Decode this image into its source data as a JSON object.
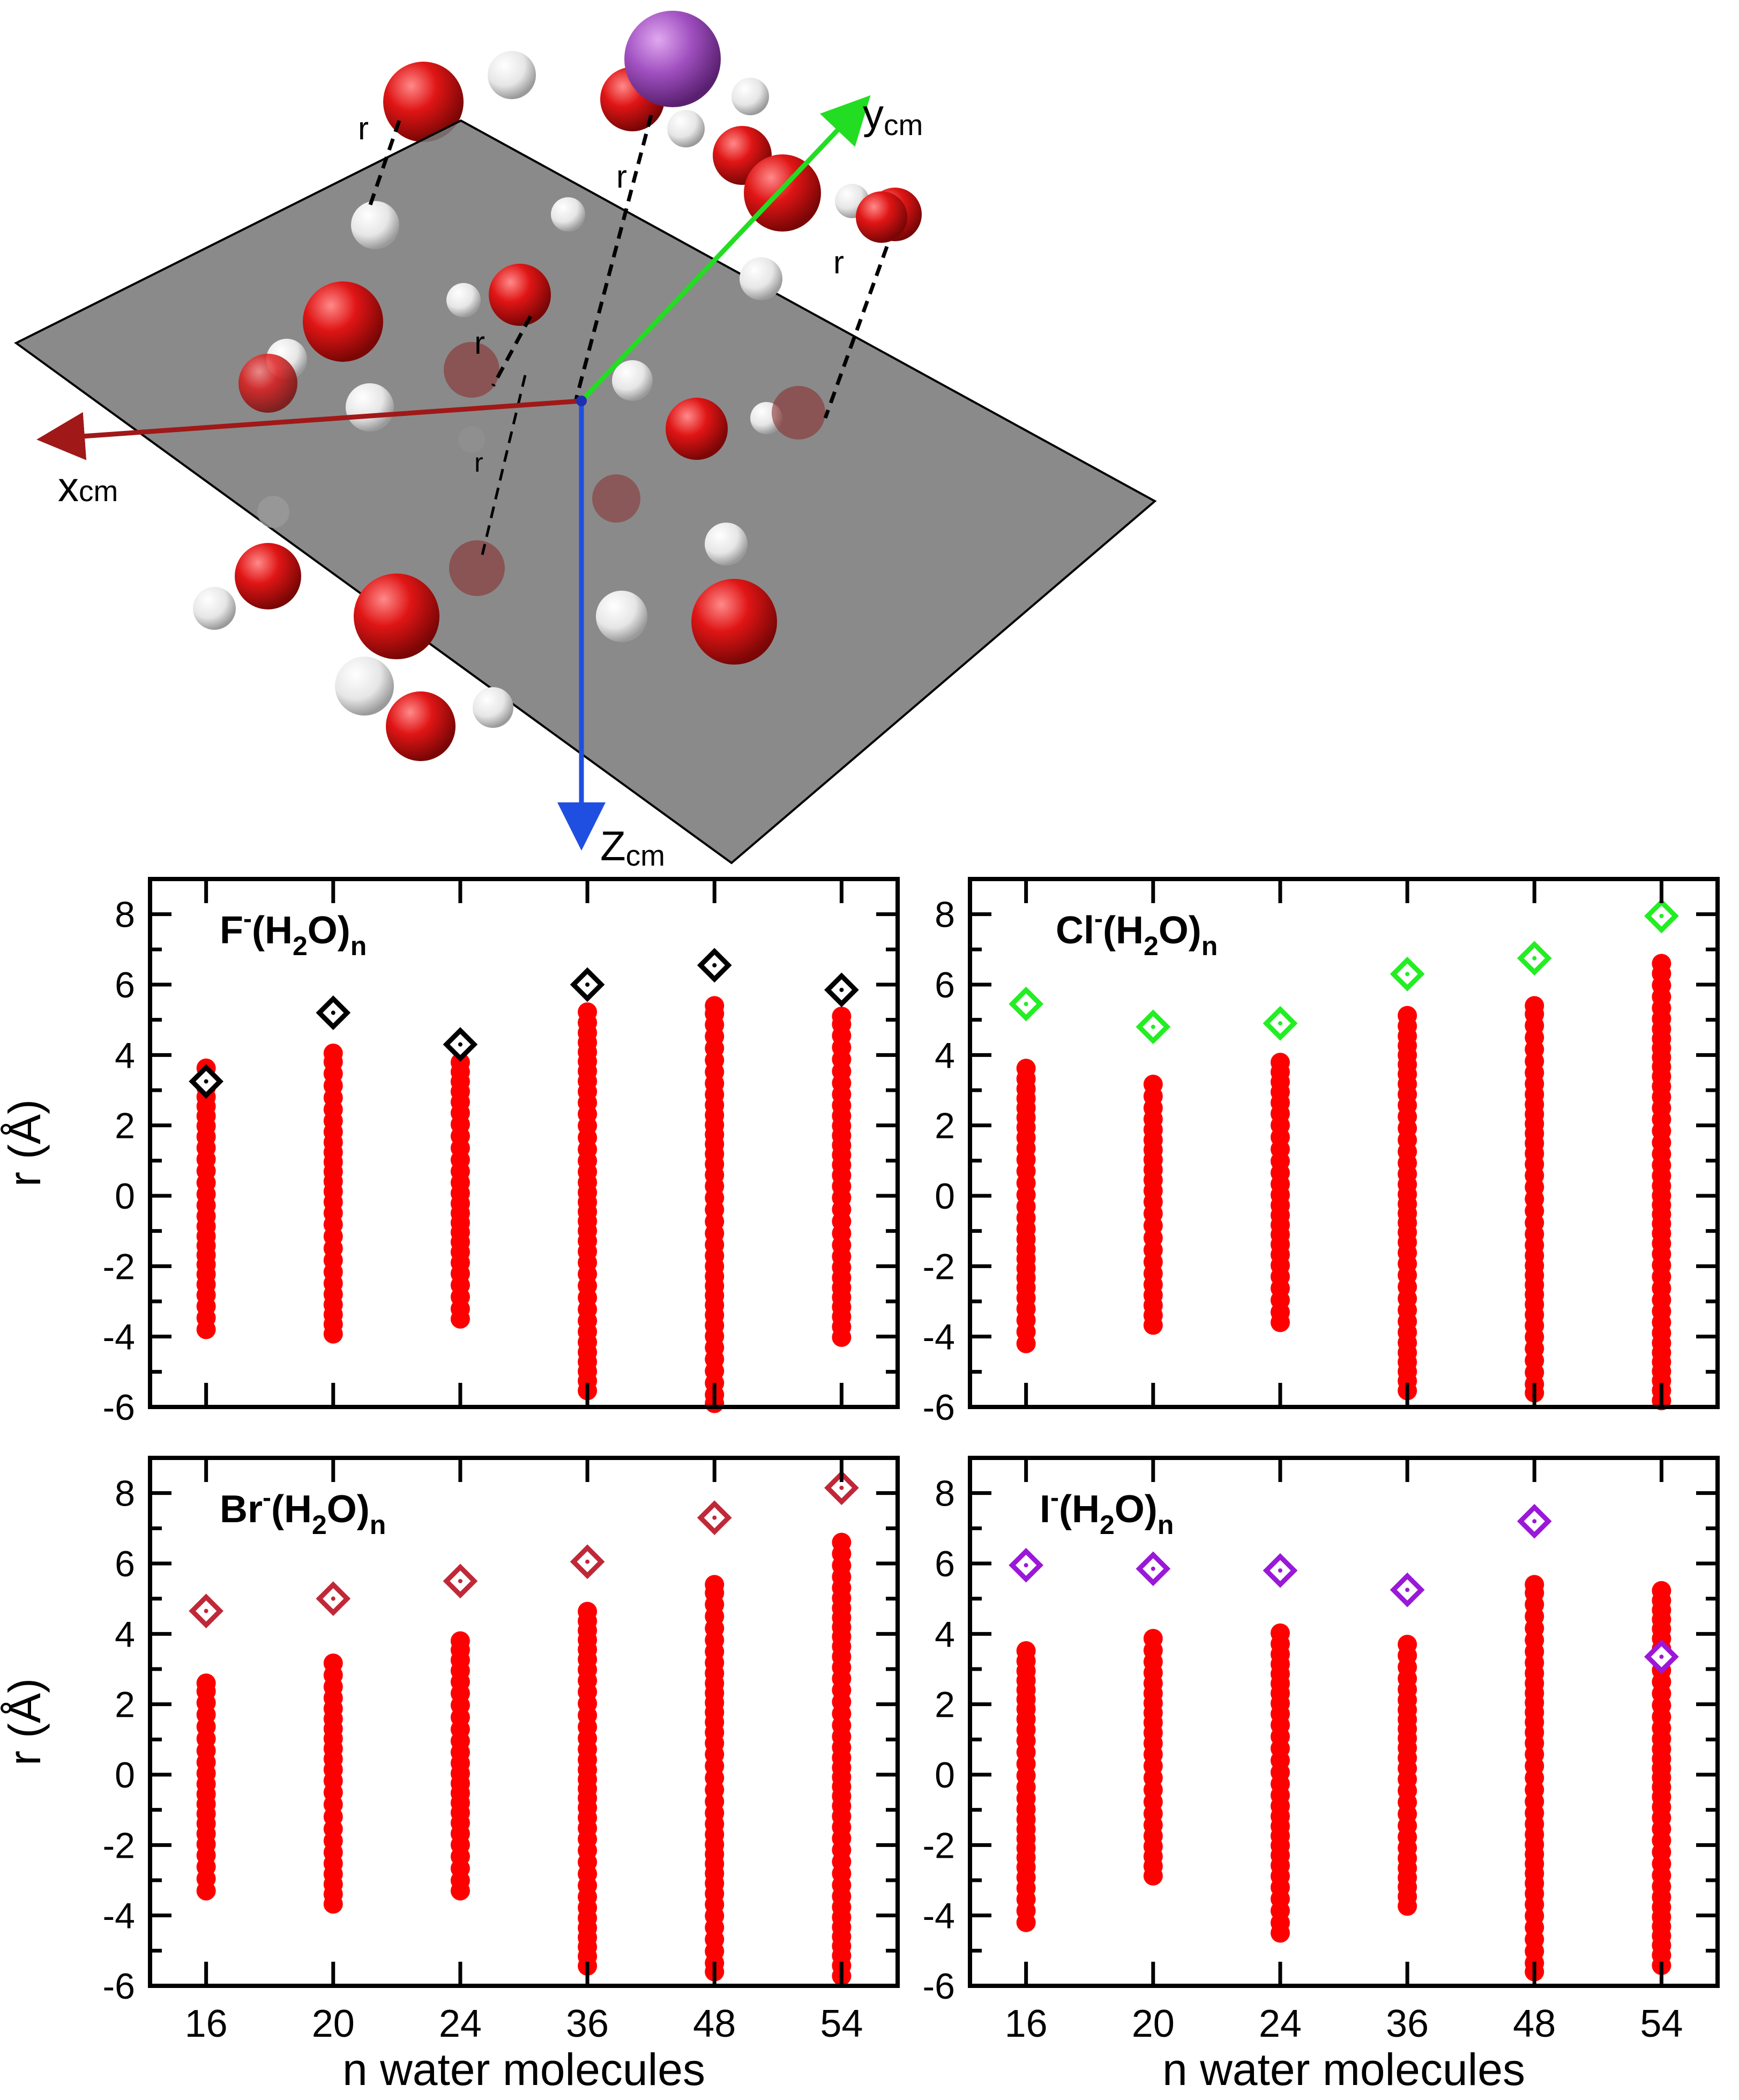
{
  "figure": {
    "colors": {
      "water_O": "#e51616",
      "water_H": "#f2f2f2",
      "ion": "#a050c0",
      "plane": "#7a7a7a"
    }
  },
  "diagram": {
    "x_axis_label": "x",
    "x_axis_sub": "cm",
    "y_axis_label": "y",
    "y_axis_sub": "cm",
    "z_axis_label": "Z",
    "z_axis_sub": "cm",
    "distance_label": "r",
    "colors": {
      "x_axis": "#a01818",
      "y_axis": "#22dd22",
      "z_axis": "#1f4fe0"
    }
  },
  "chart_data": [
    {
      "type": "scatter",
      "panel": "top-left",
      "label_parts": {
        "base": "F",
        "sup": "-",
        "paren_open": "(H",
        "sub": "2",
        "paren_close": "O)",
        "tail_sub": "n"
      },
      "categories": [
        "16",
        "20",
        "24",
        "36",
        "48",
        "54"
      ],
      "xlabel": "",
      "ylabel": "r (Å)",
      "ylim": [
        -6,
        9
      ],
      "yticks": [
        -6,
        -4,
        -2,
        0,
        2,
        4,
        6,
        8
      ],
      "ion_color": "#000000",
      "ion_r": [
        3.25,
        5.2,
        4.3,
        6.0,
        6.55,
        5.85
      ],
      "water_range": [
        [
          -3.8,
          3.7
        ],
        [
          -3.95,
          4.05
        ],
        [
          -3.5,
          3.8
        ],
        [
          -5.6,
          5.3
        ],
        [
          -5.9,
          5.4
        ],
        [
          -4.1,
          5.1
        ]
      ]
    },
    {
      "type": "scatter",
      "panel": "top-right",
      "label_parts": {
        "base": "Cl",
        "sup": "-",
        "paren_open": "(H",
        "sub": "2",
        "paren_close": "O)",
        "tail_sub": "n"
      },
      "categories": [
        "16",
        "20",
        "24",
        "36",
        "48",
        "54"
      ],
      "xlabel": "",
      "ylabel": "",
      "ylim": [
        -6,
        9
      ],
      "yticks": [
        -6,
        -4,
        -2,
        0,
        2,
        4,
        6,
        8
      ],
      "ion_color": "#22ee22",
      "ion_r": [
        5.45,
        4.8,
        4.9,
        6.3,
        6.75,
        7.95
      ],
      "water_range": [
        [
          -4.2,
          3.7
        ],
        [
          -3.7,
          3.2
        ],
        [
          -3.6,
          3.8
        ],
        [
          -5.6,
          5.2
        ],
        [
          -5.6,
          5.4
        ],
        [
          -5.9,
          6.6
        ]
      ]
    },
    {
      "type": "scatter",
      "panel": "bottom-left",
      "label_parts": {
        "base": "Br",
        "sup": "-",
        "paren_open": "(H",
        "sub": "2",
        "paren_close": "O)",
        "tail_sub": "n"
      },
      "categories": [
        "16",
        "20",
        "24",
        "36",
        "48",
        "54"
      ],
      "xlabel": "n water molecules",
      "ylabel": "r (Å)",
      "ylim": [
        -6,
        9
      ],
      "yticks": [
        -6,
        -4,
        -2,
        0,
        2,
        4,
        6,
        8
      ],
      "ion_color": "#c02838",
      "ion_r": [
        4.65,
        5.0,
        5.5,
        6.05,
        7.3,
        8.15
      ],
      "water_range": [
        [
          -3.3,
          2.6
        ],
        [
          -3.7,
          3.2
        ],
        [
          -3.3,
          3.8
        ],
        [
          -5.5,
          4.7
        ],
        [
          -5.6,
          5.4
        ],
        [
          -5.8,
          6.6
        ]
      ]
    },
    {
      "type": "scatter",
      "panel": "bottom-right",
      "label_parts": {
        "base": "I",
        "sup": "-",
        "paren_open": "(H",
        "sub": "2",
        "paren_close": "O)",
        "tail_sub": "n"
      },
      "categories": [
        "16",
        "20",
        "24",
        "36",
        "48",
        "54"
      ],
      "xlabel": "n water molecules",
      "ylabel": "",
      "ylim": [
        -6,
        9
      ],
      "yticks": [
        -6,
        -4,
        -2,
        0,
        2,
        4,
        6,
        8
      ],
      "ion_color": "#9a18d8",
      "ion_r": [
        5.95,
        5.85,
        5.8,
        5.25,
        7.2,
        3.35
      ],
      "water_range": [
        [
          -4.2,
          3.6
        ],
        [
          -2.9,
          3.9
        ],
        [
          -4.5,
          4.1
        ],
        [
          -3.8,
          3.7
        ],
        [
          -5.6,
          5.4
        ],
        [
          -5.5,
          5.3
        ]
      ]
    }
  ]
}
